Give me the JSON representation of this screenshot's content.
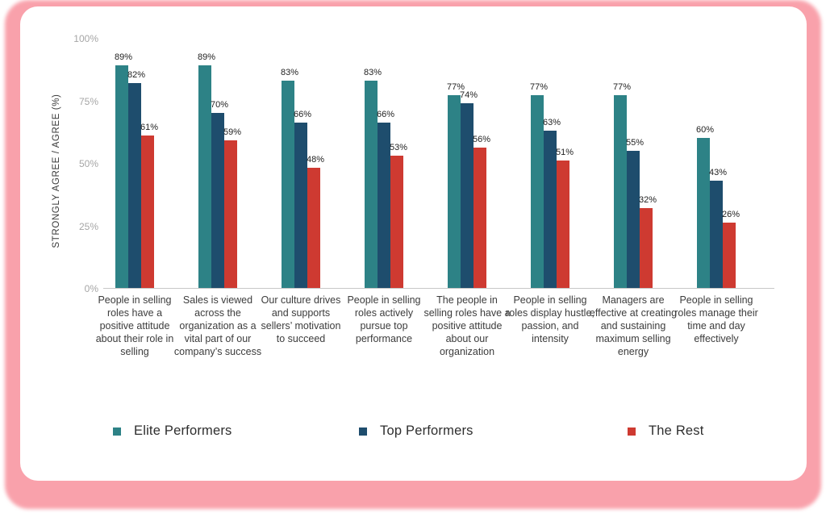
{
  "chart_data": {
    "type": "bar",
    "title": "",
    "xlabel": "",
    "ylabel": "STRONGLY AGREE / AGREE (%)",
    "ylim": [
      0,
      100
    ],
    "ytick_labels": [
      "100%",
      "75%",
      "50%",
      "25%",
      "0%"
    ],
    "ytick_values": [
      100,
      75,
      50,
      25,
      0
    ],
    "grid": false,
    "legend_position": "bottom",
    "value_label_suffix": "%",
    "categories": [
      "People in selling roles have a positive attitude about their role in selling",
      "Sales is viewed across the organization as a vital part of our company’s success",
      "Our culture drives and supports sellers’ motivation to succeed",
      "People in selling roles actively pursue top performance",
      "The people in selling roles have a positive attitude about our organization",
      "People in selling roles display hustle, passion, and intensity",
      "Managers are effective at creating and sustaining maximum selling energy",
      "People in selling roles manage their time and day effectively"
    ],
    "series": [
      {
        "name": "Elite Performers",
        "color": "#2D8286",
        "values": [
          89,
          89,
          83,
          83,
          77,
          77,
          77,
          60
        ]
      },
      {
        "name": "Top Performers",
        "color": "#1E4D6D",
        "values": [
          82,
          70,
          66,
          66,
          74,
          63,
          55,
          43
        ]
      },
      {
        "name": "The Rest",
        "color": "#CE3A31",
        "values": [
          61,
          59,
          48,
          53,
          56,
          51,
          32,
          26
        ]
      }
    ]
  },
  "colors": {
    "card_background": "#FFFFFF",
    "frame_pink": "#F9A1AB",
    "axis_line": "#C8C8C8",
    "tick_text": "#A6A6A6",
    "category_text": "#3C3C3C",
    "value_text": "#1F1F1F",
    "legend_text": "#2E2E2E"
  }
}
